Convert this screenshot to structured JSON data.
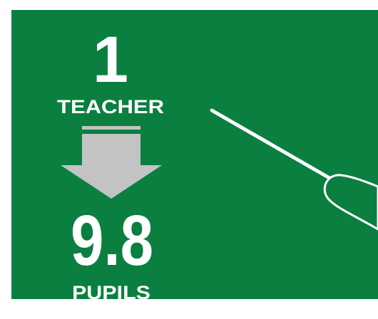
{
  "top": {
    "value": 1,
    "label": "TEACHER"
  },
  "bottom": {
    "value": 9.8,
    "label": "PUPILS"
  }
}
